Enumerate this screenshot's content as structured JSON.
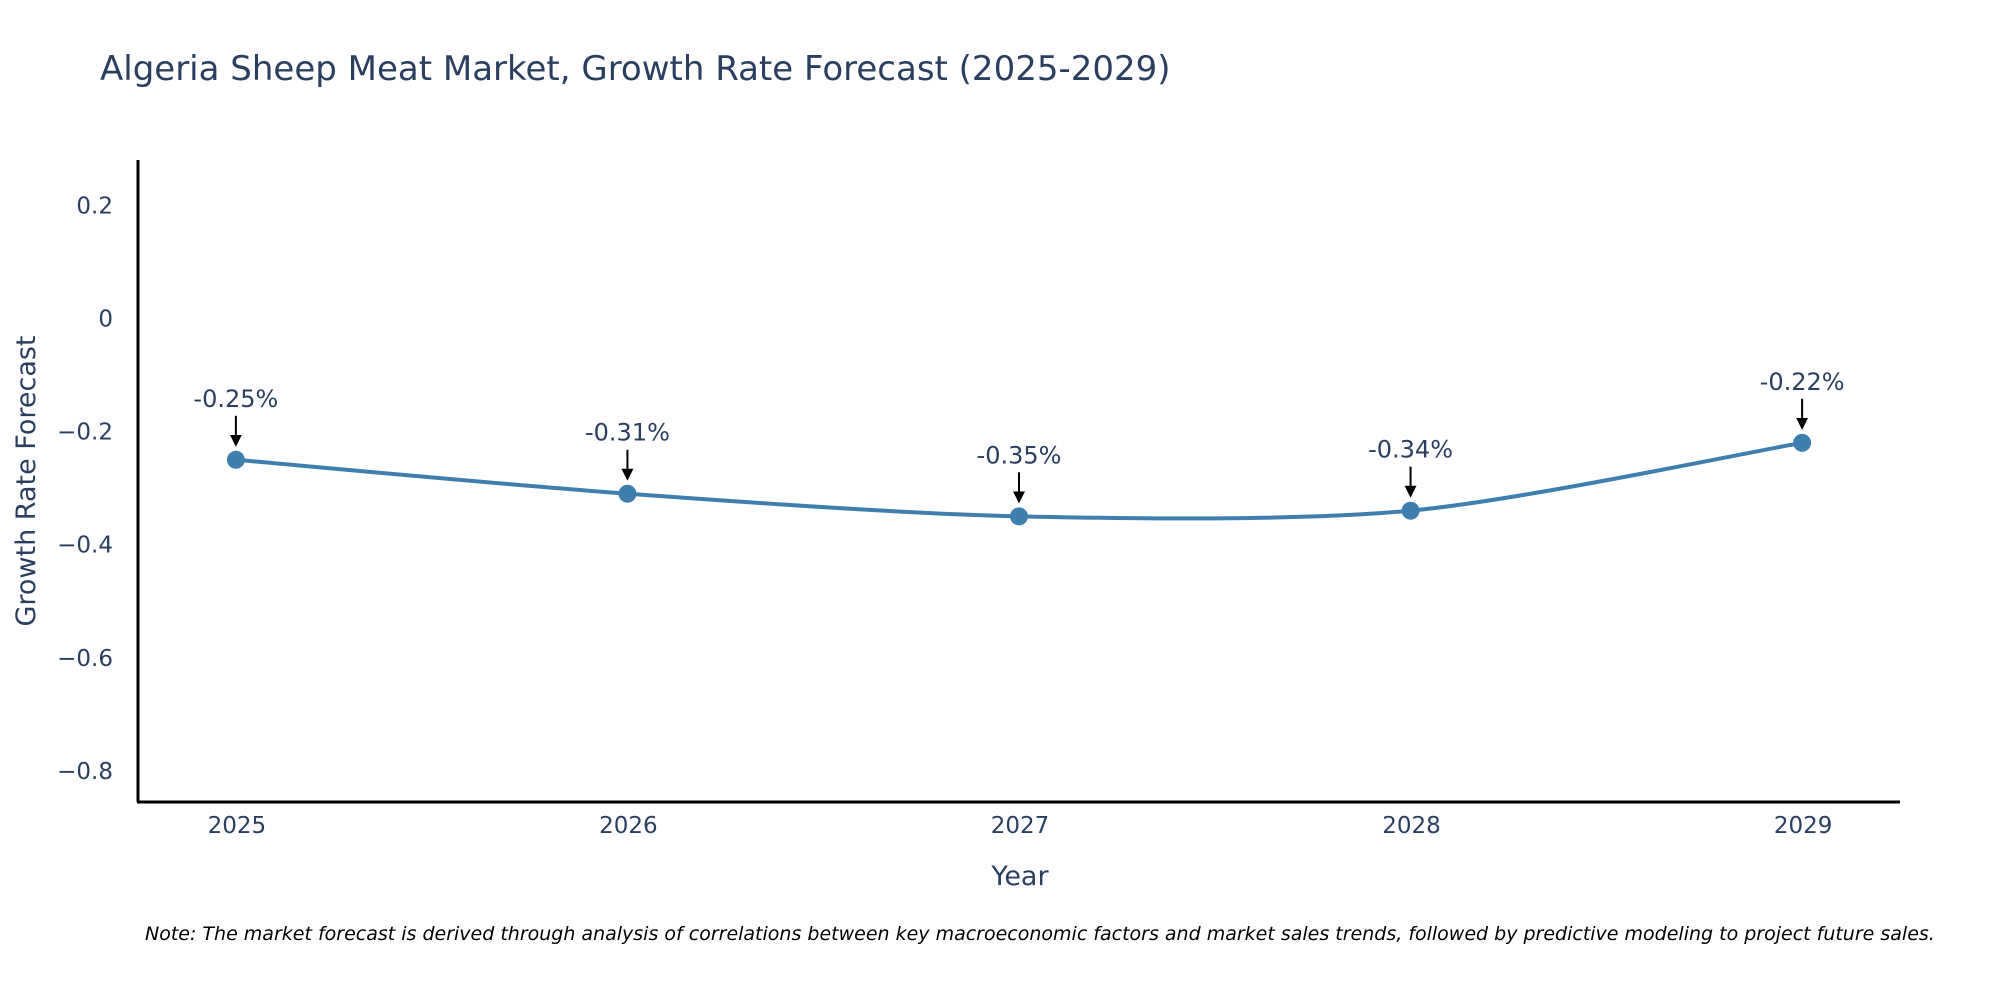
{
  "chart_data": {
    "type": "line",
    "title": "Algeria Sheep Meat Market, Growth Rate Forecast (2025-2029)",
    "xlabel": "Year",
    "ylabel": "Growth Rate Forecast",
    "categories": [
      "2025",
      "2026",
      "2027",
      "2028",
      "2029"
    ],
    "series": [
      {
        "name": "Growth Rate Forecast",
        "values": [
          -0.25,
          -0.31,
          -0.35,
          -0.34,
          -0.22
        ],
        "color": "#3f7fb0"
      }
    ],
    "annotations": [
      "-0.25%",
      "-0.31%",
      "-0.35%",
      "-0.34%",
      "-0.22%"
    ],
    "yticks": [
      0.2,
      0,
      -0.2,
      -0.4,
      -0.6,
      -0.8
    ],
    "ytick_labels": [
      "0.2",
      "0",
      "−0.2",
      "−0.4",
      "−0.6",
      "−0.8"
    ],
    "ylim": [
      -0.855,
      0.28
    ],
    "xlim": [
      2024.75,
      2029.25
    ],
    "grid": false,
    "note": "Note: The market forecast is derived through analysis of correlations between key macroeconomic factors and market sales trends, followed by predictive modeling to project future sales."
  }
}
